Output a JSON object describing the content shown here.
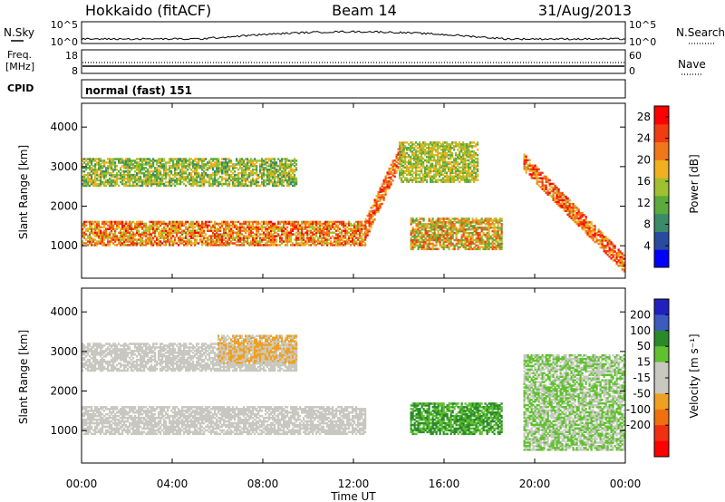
{
  "header": {
    "radar": "Hokkaido (fitACF)",
    "beam": "Beam 14",
    "date": "31/Aug/2013"
  },
  "noise_panel": {
    "left_label": "N.Sky",
    "left_ticks": [
      "10^5",
      "10^0"
    ],
    "right_label": "N.Search",
    "right_ticks": [
      "10^5",
      "10^0"
    ]
  },
  "freq_panel": {
    "left_label_top": "Freq.",
    "left_label_unit": "[MHz]",
    "left_ticks": [
      "18",
      "8"
    ],
    "right_label": "Nave",
    "right_ticks": [
      "60",
      "0"
    ]
  },
  "cpid_panel": {
    "label": "CPID",
    "value": "normal (fast) 151"
  },
  "colors": {
    "power_scale": [
      "#0000ff",
      "#2a4aa0",
      "#3b8a6a",
      "#5aaa3c",
      "#a0c030",
      "#f0b020",
      "#f07818",
      "#f03c10",
      "#ff0000"
    ],
    "velocity_scale": [
      "#2020c0",
      "#3c5ac0",
      "#2a8a2a",
      "#60c030",
      "#c8c8c0",
      "#c8c8c0",
      "#f0a020",
      "#f07010",
      "#f03010",
      "#ff0000"
    ]
  },
  "chart_data": [
    {
      "type": "heatmap",
      "panel": "power",
      "ylabel": "Slant Range [km]",
      "xlabel": "Time UT",
      "xlim": [
        "00:00",
        "24:00"
      ],
      "x_tick_labels": [
        "00:00",
        "04:00",
        "08:00",
        "12:00",
        "16:00",
        "20:00",
        "00:00"
      ],
      "ylim": [
        180,
        4600
      ],
      "y_ticks": [
        1000,
        2000,
        3000,
        4000
      ],
      "colorbar": {
        "label": "Power [dB]",
        "ticks": [
          4,
          8,
          12,
          16,
          20,
          24,
          28
        ],
        "range": [
          0,
          30
        ]
      },
      "features": [
        {
          "name": "near-range band",
          "time_h": [
            0,
            12.5
          ],
          "range_km": [
            1000,
            1600
          ],
          "power_db": [
            14,
            28
          ]
        },
        {
          "name": "rising feature",
          "time_h": [
            12.5,
            14.2
          ],
          "range_km": [
            1400,
            3500
          ],
          "power_db": [
            18,
            28
          ]
        },
        {
          "name": "upper band",
          "time_h": [
            0,
            9.5
          ],
          "range_km": [
            2500,
            3200
          ],
          "power_db": [
            8,
            20
          ]
        },
        {
          "name": "afternoon upper echoes",
          "time_h": [
            14,
            17.5
          ],
          "range_km": [
            2600,
            3600
          ],
          "power_db": [
            10,
            20
          ]
        },
        {
          "name": "afternoon lower band",
          "time_h": [
            14.5,
            18.5
          ],
          "range_km": [
            900,
            1700
          ],
          "power_db": [
            10,
            26
          ]
        },
        {
          "name": "descending evening feature",
          "time_h": [
            19.5,
            24
          ],
          "range_km": [
            500,
            3100
          ],
          "power_db": [
            16,
            30
          ]
        }
      ]
    },
    {
      "type": "heatmap",
      "panel": "velocity",
      "ylabel": "Slant Range [km]",
      "xlabel": "Time UT",
      "xlim": [
        "00:00",
        "24:00"
      ],
      "x_tick_labels": [
        "00:00",
        "04:00",
        "08:00",
        "12:00",
        "16:00",
        "20:00",
        "00:00"
      ],
      "ylim": [
        180,
        4600
      ],
      "y_ticks": [
        1000,
        2000,
        3000,
        4000
      ],
      "colorbar": {
        "label": "Velocity [m s⁻¹]",
        "ticks": [
          200,
          100,
          50,
          15,
          -15,
          -50,
          -100,
          -200
        ]
      },
      "features": [
        {
          "name": "near-range ground scatter",
          "time_h": [
            0,
            12.5
          ],
          "range_km": [
            900,
            1600
          ],
          "velocity_ms": [
            -15,
            15
          ]
        },
        {
          "name": "upper band",
          "time_h": [
            0,
            9.5
          ],
          "range_km": [
            2500,
            3200
          ],
          "velocity_ms": [
            -50,
            15
          ]
        },
        {
          "name": "morning negative velocities",
          "time_h": [
            6,
            9.5
          ],
          "range_km": [
            2700,
            3400
          ],
          "velocity_ms": [
            -100,
            -15
          ]
        },
        {
          "name": "afternoon positive velocities",
          "time_h": [
            14.5,
            18.5
          ],
          "range_km": [
            900,
            1700
          ],
          "velocity_ms": [
            15,
            100
          ]
        },
        {
          "name": "evening scatter",
          "time_h": [
            19.5,
            24
          ],
          "range_km": [
            500,
            2900
          ],
          "velocity_ms": [
            -15,
            50
          ]
        }
      ]
    }
  ]
}
